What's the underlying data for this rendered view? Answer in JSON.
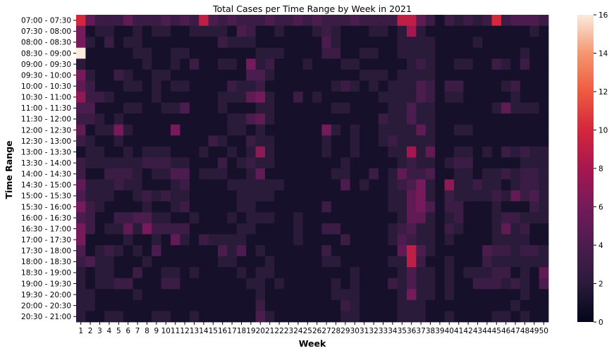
{
  "chart_data": {
    "type": "heatmap",
    "title": "Total Cases per Time Range by Week in 2021",
    "xlabel": "Week",
    "ylabel": "Time Range",
    "x": [
      1,
      2,
      3,
      4,
      5,
      6,
      7,
      8,
      9,
      10,
      11,
      12,
      13,
      14,
      15,
      16,
      17,
      18,
      19,
      20,
      21,
      22,
      23,
      24,
      25,
      26,
      27,
      28,
      29,
      30,
      31,
      32,
      33,
      34,
      35,
      36,
      37,
      38,
      39,
      40,
      41,
      42,
      43,
      44,
      45,
      46,
      47,
      48,
      49,
      50
    ],
    "y": [
      "07:00 - 07:30",
      "07:30 - 08:00",
      "08:00 - 08:30",
      "08:30 - 09:00",
      "09:00 - 09:30",
      "09:30 - 10:00",
      "10:00 - 10:30",
      "10:30 - 11:00",
      "11:00 - 11:30",
      "11:30 - 12:00",
      "12:00 - 12:30",
      "12:30 - 13:00",
      "13:00 - 13:30",
      "13:30 - 14:00",
      "14:00 - 14:30",
      "14:30 - 15:00",
      "15:00 - 15:30",
      "15:30 - 16:00",
      "16:00 - 16:30",
      "16:30 - 17:00",
      "17:00 - 17:30",
      "17:30 - 18:00",
      "18:00 - 18:30",
      "18:30 - 19:00",
      "19:00 - 19:30",
      "19:30 - 20:00",
      "20:00 - 20:30",
      "20:30 - 21:00"
    ],
    "colorbar": {
      "min": 0,
      "max": 16,
      "ticks": [
        0,
        2,
        4,
        6,
        8,
        10,
        12,
        14,
        16
      ]
    },
    "values": [
      [
        10,
        5,
        3,
        3,
        3,
        5,
        3,
        3,
        3,
        4,
        3,
        4,
        3,
        9,
        4,
        3,
        4,
        3,
        3,
        3,
        4,
        3,
        3,
        4,
        3,
        4,
        3,
        3,
        3,
        4,
        3,
        3,
        3,
        3,
        9,
        9,
        5,
        3,
        1,
        3,
        2,
        3,
        2,
        3,
        10,
        3,
        4,
        4,
        4,
        3
      ],
      [
        6,
        1,
        2,
        2,
        1,
        1,
        2,
        1,
        2,
        2,
        1,
        1,
        2,
        2,
        2,
        2,
        1,
        4,
        3,
        1,
        1,
        2,
        1,
        1,
        1,
        2,
        3,
        2,
        1,
        1,
        1,
        2,
        2,
        1,
        2,
        8,
        2,
        1,
        1,
        1,
        1,
        1,
        1,
        1,
        1,
        1,
        1,
        1,
        2,
        1
      ],
      [
        6,
        2,
        1,
        3,
        1,
        2,
        2,
        1,
        1,
        1,
        1,
        1,
        1,
        1,
        1,
        3,
        2,
        2,
        2,
        1,
        1,
        1,
        1,
        1,
        1,
        1,
        4,
        2,
        1,
        1,
        1,
        1,
        1,
        1,
        2,
        2,
        2,
        2,
        1,
        1,
        1,
        1,
        2,
        1,
        1,
        1,
        1,
        1,
        1,
        1
      ],
      [
        16,
        1,
        1,
        1,
        1,
        1,
        2,
        2,
        1,
        1,
        2,
        2,
        1,
        1,
        1,
        1,
        1,
        1,
        1,
        2,
        2,
        2,
        1,
        1,
        1,
        1,
        3,
        3,
        1,
        1,
        2,
        2,
        1,
        1,
        2,
        2,
        2,
        2,
        1,
        1,
        1,
        1,
        1,
        1,
        1,
        1,
        1,
        2,
        1,
        1
      ],
      [
        2,
        1,
        1,
        1,
        1,
        1,
        1,
        2,
        1,
        1,
        2,
        1,
        3,
        1,
        1,
        2,
        2,
        1,
        6,
        2,
        3,
        1,
        1,
        1,
        2,
        1,
        1,
        1,
        2,
        2,
        1,
        1,
        1,
        1,
        1,
        2,
        3,
        2,
        1,
        1,
        2,
        2,
        1,
        1,
        3,
        2,
        1,
        3,
        1,
        1
      ],
      [
        6,
        2,
        1,
        1,
        3,
        2,
        1,
        1,
        2,
        2,
        1,
        1,
        1,
        1,
        1,
        1,
        1,
        1,
        4,
        4,
        2,
        1,
        1,
        1,
        1,
        1,
        1,
        1,
        1,
        1,
        2,
        2,
        2,
        1,
        2,
        2,
        2,
        2,
        1,
        1,
        1,
        1,
        1,
        1,
        1,
        1,
        1,
        1,
        1,
        1
      ],
      [
        5,
        3,
        1,
        1,
        1,
        2,
        2,
        1,
        2,
        1,
        2,
        2,
        1,
        1,
        1,
        1,
        3,
        2,
        2,
        3,
        1,
        1,
        1,
        1,
        1,
        1,
        1,
        2,
        3,
        2,
        1,
        2,
        1,
        2,
        2,
        2,
        4,
        3,
        1,
        3,
        3,
        1,
        1,
        1,
        1,
        2,
        3,
        1,
        1,
        1
      ],
      [
        7,
        3,
        3,
        2,
        1,
        1,
        1,
        1,
        2,
        1,
        1,
        1,
        1,
        1,
        1,
        2,
        2,
        2,
        5,
        6,
        2,
        1,
        1,
        3,
        1,
        2,
        1,
        1,
        1,
        1,
        1,
        1,
        2,
        2,
        2,
        2,
        4,
        3,
        1,
        2,
        2,
        1,
        1,
        1,
        1,
        1,
        2,
        1,
        1,
        1
      ],
      [
        4,
        4,
        1,
        1,
        1,
        2,
        2,
        1,
        1,
        2,
        2,
        4,
        1,
        1,
        1,
        2,
        1,
        1,
        1,
        2,
        2,
        1,
        1,
        1,
        1,
        1,
        1,
        2,
        2,
        1,
        1,
        1,
        1,
        2,
        2,
        4,
        2,
        2,
        1,
        1,
        1,
        1,
        1,
        1,
        2,
        5,
        2,
        2,
        2,
        1
      ],
      [
        3,
        3,
        2,
        1,
        2,
        1,
        1,
        1,
        1,
        1,
        1,
        1,
        1,
        1,
        1,
        1,
        2,
        2,
        4,
        5,
        2,
        1,
        1,
        1,
        1,
        1,
        1,
        1,
        1,
        1,
        1,
        1,
        3,
        2,
        2,
        4,
        2,
        2,
        1,
        1,
        1,
        1,
        1,
        1,
        1,
        1,
        1,
        1,
        1,
        1
      ],
      [
        5,
        1,
        2,
        2,
        6,
        2,
        1,
        1,
        1,
        1,
        6,
        1,
        1,
        1,
        1,
        1,
        2,
        2,
        1,
        2,
        1,
        1,
        1,
        1,
        1,
        1,
        6,
        2,
        1,
        2,
        1,
        1,
        2,
        2,
        2,
        2,
        5,
        2,
        1,
        1,
        2,
        2,
        1,
        1,
        1,
        1,
        1,
        1,
        1,
        1
      ],
      [
        3,
        2,
        1,
        1,
        2,
        1,
        1,
        1,
        1,
        1,
        1,
        1,
        1,
        1,
        3,
        2,
        1,
        1,
        3,
        2,
        2,
        1,
        1,
        1,
        1,
        1,
        2,
        1,
        1,
        2,
        1,
        1,
        2,
        3,
        2,
        2,
        2,
        2,
        1,
        1,
        1,
        1,
        1,
        1,
        1,
        1,
        1,
        1,
        1,
        1
      ],
      [
        1,
        2,
        2,
        1,
        1,
        2,
        1,
        2,
        2,
        2,
        1,
        1,
        1,
        2,
        1,
        1,
        2,
        1,
        2,
        7,
        2,
        1,
        1,
        1,
        1,
        1,
        2,
        1,
        1,
        2,
        1,
        1,
        1,
        2,
        2,
        8,
        2,
        5,
        1,
        1,
        2,
        2,
        1,
        2,
        1,
        3,
        2,
        3,
        2,
        2
      ],
      [
        3,
        2,
        2,
        2,
        2,
        2,
        2,
        3,
        3,
        3,
        2,
        2,
        1,
        1,
        1,
        3,
        1,
        2,
        3,
        2,
        2,
        1,
        1,
        1,
        1,
        1,
        1,
        1,
        2,
        1,
        1,
        1,
        1,
        1,
        2,
        3,
        2,
        2,
        1,
        2,
        3,
        3,
        1,
        1,
        1,
        1,
        1,
        2,
        2,
        2
      ],
      [
        3,
        1,
        1,
        3,
        3,
        3,
        2,
        1,
        2,
        2,
        4,
        4,
        1,
        2,
        2,
        2,
        1,
        1,
        2,
        5,
        1,
        1,
        1,
        1,
        1,
        1,
        1,
        2,
        2,
        1,
        1,
        3,
        1,
        2,
        5,
        3,
        3,
        4,
        1,
        1,
        2,
        2,
        1,
        2,
        2,
        3,
        2,
        3,
        3,
        2
      ],
      [
        5,
        2,
        2,
        2,
        3,
        2,
        2,
        1,
        1,
        1,
        2,
        3,
        1,
        1,
        1,
        1,
        2,
        2,
        2,
        2,
        2,
        2,
        1,
        1,
        1,
        1,
        1,
        1,
        4,
        1,
        2,
        1,
        1,
        2,
        3,
        4,
        6,
        2,
        1,
        7,
        2,
        2,
        3,
        2,
        2,
        1,
        2,
        3,
        3,
        2
      ],
      [
        4,
        2,
        2,
        2,
        1,
        1,
        2,
        3,
        2,
        3,
        2,
        2,
        1,
        1,
        1,
        1,
        1,
        2,
        2,
        2,
        2,
        1,
        1,
        1,
        1,
        1,
        1,
        1,
        1,
        1,
        1,
        1,
        1,
        2,
        2,
        5,
        6,
        2,
        1,
        3,
        2,
        2,
        2,
        2,
        3,
        2,
        5,
        3,
        4,
        2
      ],
      [
        6,
        3,
        2,
        1,
        1,
        1,
        1,
        2,
        1,
        1,
        2,
        3,
        1,
        1,
        1,
        1,
        1,
        2,
        2,
        1,
        1,
        1,
        1,
        1,
        1,
        1,
        3,
        1,
        1,
        1,
        1,
        1,
        1,
        2,
        2,
        5,
        6,
        4,
        1,
        3,
        3,
        1,
        1,
        1,
        2,
        1,
        1,
        1,
        3,
        2
      ],
      [
        4,
        3,
        1,
        1,
        3,
        3,
        4,
        4,
        2,
        2,
        1,
        1,
        2,
        1,
        1,
        1,
        2,
        1,
        2,
        2,
        2,
        1,
        1,
        2,
        1,
        1,
        1,
        1,
        1,
        1,
        1,
        1,
        1,
        1,
        2,
        5,
        5,
        2,
        1,
        2,
        3,
        1,
        1,
        1,
        2,
        3,
        3,
        2,
        2,
        2
      ],
      [
        6,
        3,
        1,
        2,
        2,
        5,
        2,
        6,
        3,
        3,
        3,
        3,
        1,
        1,
        1,
        1,
        1,
        2,
        2,
        1,
        1,
        1,
        1,
        2,
        1,
        1,
        3,
        3,
        1,
        1,
        1,
        1,
        1,
        2,
        3,
        4,
        2,
        2,
        1,
        3,
        2,
        1,
        1,
        1,
        2,
        5,
        2,
        3,
        1,
        1
      ],
      [
        6,
        1,
        1,
        1,
        1,
        2,
        1,
        1,
        2,
        1,
        5,
        2,
        1,
        3,
        2,
        2,
        2,
        2,
        1,
        1,
        1,
        1,
        1,
        2,
        1,
        1,
        1,
        1,
        3,
        1,
        1,
        1,
        1,
        2,
        4,
        3,
        2,
        2,
        1,
        2,
        1,
        1,
        1,
        1,
        2,
        2,
        2,
        2,
        1,
        1
      ],
      [
        4,
        1,
        2,
        3,
        2,
        1,
        2,
        1,
        4,
        1,
        1,
        1,
        1,
        1,
        1,
        4,
        2,
        4,
        1,
        2,
        1,
        1,
        1,
        1,
        1,
        1,
        3,
        1,
        1,
        1,
        1,
        1,
        1,
        1,
        5,
        9,
        4,
        2,
        1,
        1,
        1,
        1,
        1,
        4,
        3,
        3,
        2,
        3,
        3,
        2
      ],
      [
        3,
        4,
        2,
        2,
        1,
        1,
        1,
        2,
        1,
        1,
        1,
        1,
        1,
        1,
        1,
        2,
        2,
        1,
        1,
        1,
        2,
        1,
        1,
        1,
        1,
        1,
        2,
        2,
        1,
        1,
        1,
        1,
        1,
        2,
        2,
        9,
        3,
        1,
        1,
        2,
        1,
        1,
        1,
        3,
        2,
        2,
        2,
        2,
        2,
        2
      ],
      [
        2,
        1,
        2,
        2,
        1,
        1,
        3,
        1,
        1,
        2,
        2,
        1,
        2,
        1,
        1,
        1,
        1,
        2,
        1,
        2,
        2,
        1,
        1,
        1,
        1,
        1,
        1,
        1,
        1,
        2,
        1,
        1,
        1,
        1,
        2,
        4,
        2,
        2,
        1,
        2,
        1,
        2,
        2,
        2,
        3,
        3,
        1,
        2,
        1,
        5
      ],
      [
        2,
        1,
        2,
        2,
        3,
        3,
        1,
        1,
        1,
        3,
        3,
        1,
        1,
        1,
        1,
        1,
        1,
        1,
        2,
        2,
        1,
        2,
        1,
        1,
        1,
        1,
        1,
        2,
        1,
        2,
        1,
        1,
        1,
        3,
        2,
        4,
        2,
        2,
        1,
        2,
        1,
        1,
        3,
        3,
        3,
        2,
        3,
        2,
        1,
        4
      ],
      [
        2,
        2,
        1,
        1,
        1,
        1,
        2,
        1,
        1,
        1,
        1,
        1,
        1,
        1,
        1,
        1,
        1,
        1,
        1,
        2,
        1,
        1,
        1,
        1,
        1,
        1,
        1,
        2,
        2,
        2,
        1,
        1,
        1,
        1,
        2,
        6,
        2,
        2,
        1,
        2,
        1,
        1,
        1,
        1,
        1,
        1,
        1,
        2,
        1,
        1
      ],
      [
        2,
        2,
        1,
        1,
        1,
        1,
        1,
        1,
        1,
        1,
        1,
        1,
        1,
        1,
        1,
        1,
        1,
        1,
        1,
        3,
        1,
        1,
        1,
        1,
        1,
        1,
        1,
        1,
        3,
        2,
        1,
        1,
        1,
        1,
        2,
        2,
        2,
        1,
        1,
        1,
        1,
        1,
        1,
        1,
        1,
        1,
        2,
        1,
        1,
        1
      ],
      [
        2,
        1,
        1,
        2,
        2,
        1,
        1,
        1,
        2,
        2,
        1,
        1,
        2,
        1,
        1,
        1,
        1,
        1,
        1,
        4,
        2,
        1,
        1,
        1,
        1,
        1,
        1,
        1,
        2,
        2,
        1,
        1,
        1,
        1,
        2,
        2,
        2,
        1,
        1,
        2,
        1,
        1,
        1,
        1,
        2,
        2,
        1,
        2,
        1,
        1
      ]
    ]
  }
}
